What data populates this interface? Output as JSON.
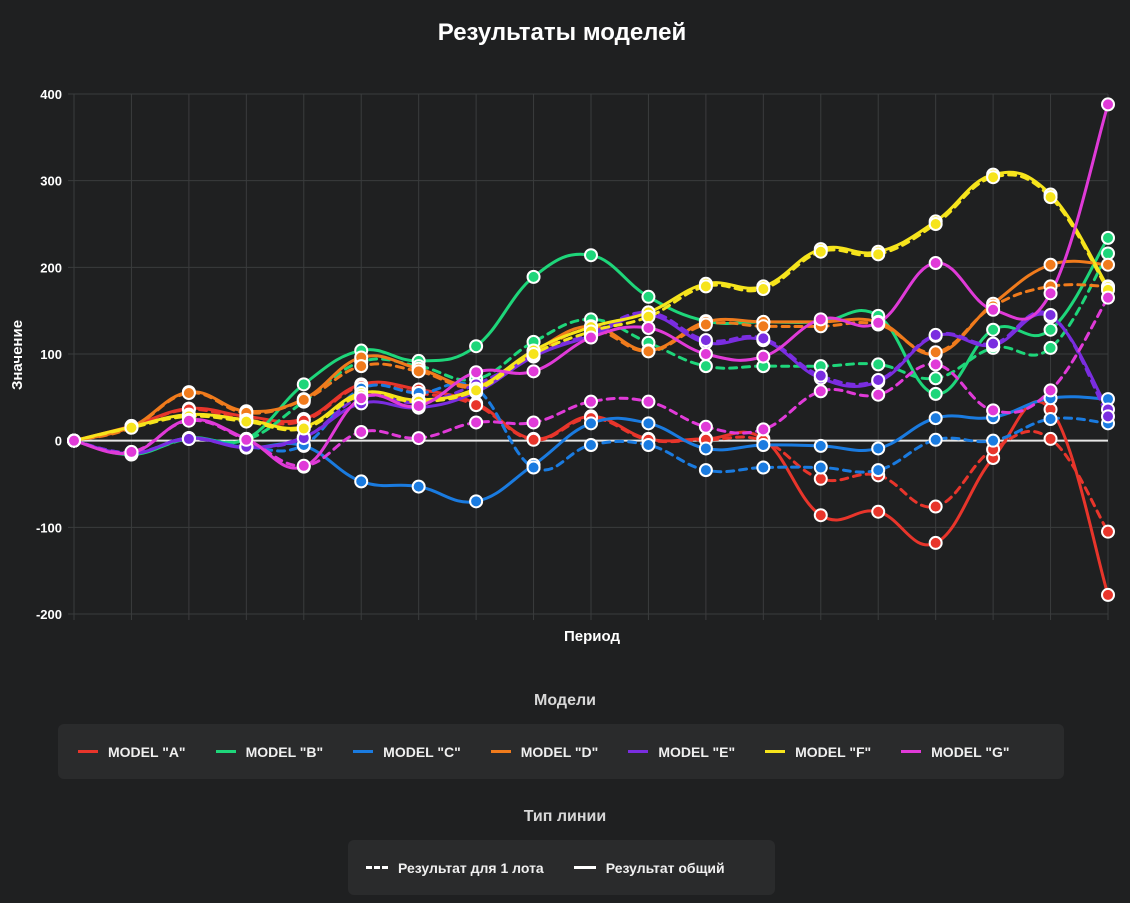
{
  "chart_data": {
    "type": "line",
    "title": "Результаты моделей",
    "xlabel": "Период",
    "ylabel": "Значение",
    "ylim": [
      -200,
      400
    ],
    "yticks": [
      -200,
      -100,
      0,
      100,
      200,
      300,
      400
    ],
    "n_periods": 19,
    "zero_line": true,
    "series": [
      {
        "name": "MODEL \"A\"",
        "color": "#e8352b",
        "style": "solid",
        "values": [
          0,
          17,
          37,
          28,
          25,
          65,
          59,
          43,
          2,
          28,
          2,
          2,
          2,
          -86,
          -82,
          -118,
          -20,
          36,
          -178
        ]
      },
      {
        "name": "MODEL \"A\"",
        "color": "#e8352b",
        "style": "dashed",
        "values": [
          0,
          16,
          36,
          24,
          23,
          63,
          55,
          41,
          1,
          26,
          1,
          1,
          0,
          -44,
          -40,
          -76,
          -10,
          2,
          -105
        ]
      },
      {
        "name": "MODEL \"B\"",
        "color": "#1ed67a",
        "style": "solid",
        "values": [
          0,
          -16,
          3,
          2,
          65,
          104,
          92,
          109,
          189,
          214,
          166,
          138,
          137,
          137,
          144,
          54,
          128,
          128,
          234
        ]
      },
      {
        "name": "MODEL \"B\"",
        "color": "#1ed67a",
        "style": "dashed",
        "values": [
          0,
          -15,
          2,
          1,
          45,
          91,
          86,
          71,
          114,
          140,
          113,
          86,
          86,
          86,
          88,
          72,
          107,
          107,
          216
        ]
      },
      {
        "name": "MODEL \"C\"",
        "color": "#1a7be0",
        "style": "solid",
        "values": [
          0,
          -15,
          3,
          -8,
          -6,
          -47,
          -53,
          -70,
          -28,
          20,
          20,
          -9,
          -5,
          -6,
          -9,
          26,
          27,
          49,
          48
        ]
      },
      {
        "name": "MODEL \"C\"",
        "color": "#1a7be0",
        "style": "dashed",
        "values": [
          0,
          -14,
          2,
          -7,
          -5,
          60,
          55,
          60,
          -31,
          -5,
          -5,
          -34,
          -31,
          -31,
          -34,
          1,
          0,
          25,
          20
        ]
      },
      {
        "name": "MODEL \"D\"",
        "color": "#f07b1c",
        "style": "solid",
        "values": [
          0,
          16,
          56,
          34,
          48,
          96,
          83,
          64,
          103,
          132,
          104,
          137,
          137,
          137,
          137,
          100,
          158,
          203,
          203
        ]
      },
      {
        "name": "MODEL \"D\"",
        "color": "#f07b1c",
        "style": "dashed",
        "values": [
          0,
          15,
          55,
          32,
          47,
          86,
          80,
          62,
          100,
          128,
          103,
          134,
          132,
          132,
          134,
          102,
          155,
          178,
          178
        ]
      },
      {
        "name": "MODEL \"E\"",
        "color": "#7a2de0",
        "style": "solid",
        "values": [
          0,
          -15,
          3,
          -8,
          4,
          43,
          38,
          56,
          97,
          121,
          145,
          113,
          116,
          72,
          68,
          121,
          110,
          143,
          36
        ]
      },
      {
        "name": "MODEL \"E\"",
        "color": "#7a2de0",
        "style": "dashed",
        "values": [
          0,
          -14,
          2,
          -7,
          3,
          50,
          44,
          65,
          98,
          124,
          148,
          116,
          118,
          75,
          70,
          122,
          112,
          145,
          28
        ]
      },
      {
        "name": "MODEL \"F\"",
        "color": "#f6e41c",
        "style": "solid",
        "values": [
          0,
          16,
          30,
          24,
          16,
          55,
          47,
          60,
          104,
          131,
          148,
          181,
          178,
          221,
          218,
          253,
          307,
          284,
          177
        ]
      },
      {
        "name": "MODEL \"F\"",
        "color": "#f6e41c",
        "style": "dashed",
        "values": [
          0,
          15,
          28,
          22,
          14,
          52,
          45,
          58,
          100,
          126,
          143,
          178,
          175,
          218,
          215,
          250,
          304,
          281,
          174
        ]
      },
      {
        "name": "MODEL \"G\"",
        "color": "#e03ad8",
        "style": "solid",
        "values": [
          0,
          -14,
          24,
          2,
          -30,
          49,
          40,
          79,
          80,
          119,
          130,
          100,
          97,
          140,
          136,
          205,
          151,
          170,
          388
        ]
      },
      {
        "name": "MODEL \"G\"",
        "color": "#e03ad8",
        "style": "dashed",
        "values": [
          0,
          -13,
          23,
          1,
          -29,
          10,
          3,
          21,
          21,
          45,
          45,
          16,
          13,
          57,
          53,
          88,
          35,
          58,
          165
        ]
      }
    ]
  },
  "legend": {
    "models_title": "Модели",
    "models": [
      {
        "label": "MODEL \"A\"",
        "color": "#e8352b"
      },
      {
        "label": "MODEL \"B\"",
        "color": "#1ed67a"
      },
      {
        "label": "MODEL \"C\"",
        "color": "#1a7be0"
      },
      {
        "label": "MODEL \"D\"",
        "color": "#f07b1c"
      },
      {
        "label": "MODEL \"E\"",
        "color": "#7a2de0"
      },
      {
        "label": "MODEL \"F\"",
        "color": "#f6e41c"
      },
      {
        "label": "MODEL \"G\"",
        "color": "#e03ad8"
      }
    ],
    "line_type_title": "Тип линии",
    "line_types": [
      {
        "label": "Результат для 1 лота",
        "style": "dashed"
      },
      {
        "label": "Результат общий",
        "style": "solid"
      }
    ]
  }
}
